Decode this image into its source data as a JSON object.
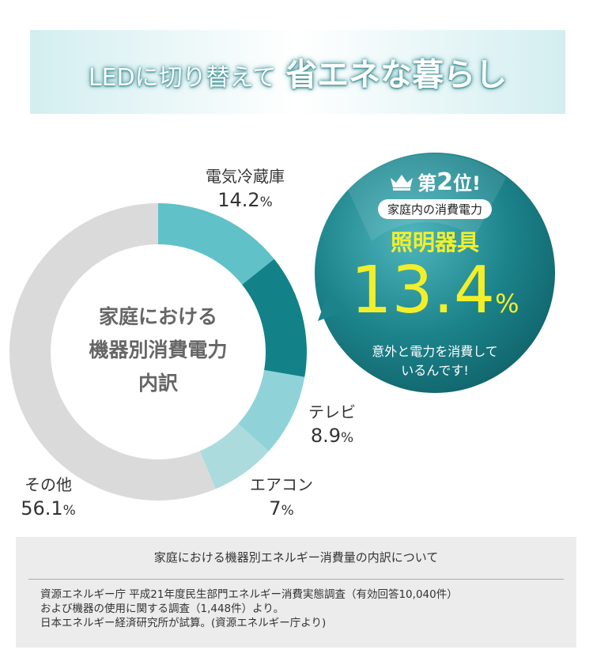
{
  "banner": {
    "part1": "LEDに切り替えて",
    "part2": "省エネな暮らし"
  },
  "chart_data": {
    "type": "pie",
    "title": "家庭における機器別消費電力内訳",
    "title_lines": [
      "家庭における",
      "機器別消費電力",
      "内訳"
    ],
    "donut": true,
    "series": [
      {
        "label": "電気冷蔵庫",
        "value": 14.2,
        "display": "14.2",
        "color": "#61c1c8"
      },
      {
        "label": "照明器具",
        "value": 13.4,
        "display": "13.4",
        "color": "#138188"
      },
      {
        "label": "テレビ",
        "value": 8.9,
        "display": "8.9",
        "color": "#8fd3d8"
      },
      {
        "label": "エアコン",
        "value": 7,
        "display": "7",
        "color": "#abdbdd"
      },
      {
        "label": "その他",
        "value": 56.1,
        "display": "56.1",
        "color": "#dadada"
      }
    ],
    "unit": "%"
  },
  "callout": {
    "rank": "第2位!",
    "rank_prefix": "第",
    "rank_number": "2",
    "rank_suffix": "位!",
    "pill": "家庭内の消費電力",
    "name": "照明器具",
    "value": "13.4",
    "unit": "%",
    "note_lines": [
      "意外と電力を消費して",
      "いるんです!"
    ],
    "bubble_color": "#1a7f87",
    "accent_color": "#f2ef2a"
  },
  "icons": {
    "crown": "crown-icon"
  },
  "source": {
    "heading": "家庭における機器別エネルギー消費量の内訳について",
    "lines": [
      "資源エネルギー庁 平成21年度民生部門エネルギー消費実態調査（有効回答10,040件）",
      "および機器の使用に関する調査（1,448件）より。",
      "日本エネルギー経済研究所が試算。(資源エネルギー庁より)"
    ]
  }
}
